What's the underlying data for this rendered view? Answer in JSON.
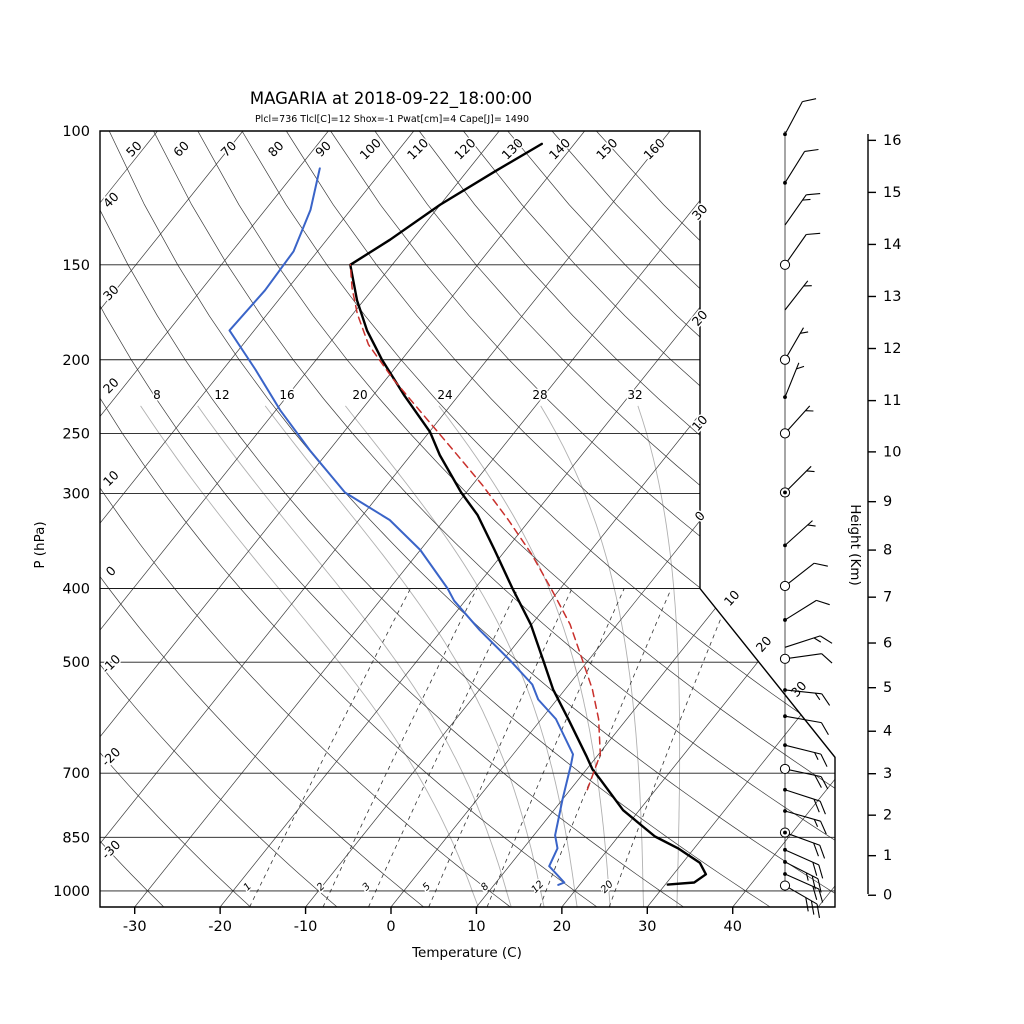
{
  "chart_data": {
    "type": "line",
    "subtype": "skew-t-log-p-sounding",
    "title": "MAGARIA at 2018-09-22_18:00:00",
    "subtitle": "Plcl=736 Tlcl[C]=12 Shox=-1 Pwat[cm]=4 Cape[J]= 1490",
    "axes": {
      "pressure": {
        "label": "P (hPa)",
        "unit": "hPa",
        "scale": "log",
        "min": 100,
        "max": 1050,
        "ticks": [
          100,
          150,
          200,
          250,
          300,
          400,
          500,
          700,
          850,
          1000
        ]
      },
      "temperature": {
        "label": "Temperature (C)",
        "unit": "C",
        "ticks": [
          -30,
          -20,
          -10,
          0,
          10,
          20,
          30,
          40
        ]
      },
      "height": {
        "label": "Height (Km)",
        "unit": "km",
        "ticks": [
          0,
          1,
          2,
          3,
          4,
          5,
          6,
          7,
          8,
          9,
          10,
          11,
          12,
          13,
          14,
          15,
          16
        ]
      }
    },
    "grid": {
      "isotherms": {
        "start": -110,
        "end": 50,
        "step": 10
      },
      "dry_adiabats": {
        "start": -30,
        "end": 160,
        "step": 10,
        "top_labels": [
          "50",
          "60",
          "70",
          "80",
          "90",
          "100",
          "110",
          "120",
          "130",
          "140",
          "150",
          "160"
        ],
        "left_labels": [
          "40",
          "30",
          "20",
          "10",
          "0",
          "-10",
          "-20",
          "-30"
        ]
      },
      "isotherm_edge_labels": {
        "upper": [
          "30",
          "20",
          "10",
          "0"
        ],
        "lower": [
          "10",
          "20",
          "30"
        ]
      },
      "moist_adiabats": {
        "values": [
          8,
          12,
          16,
          20,
          24,
          28,
          32
        ]
      },
      "mixing_ratio_lines": {
        "values": [
          1,
          2,
          3,
          5,
          8,
          12,
          20
        ],
        "unit": "g/kg"
      }
    },
    "series": [
      {
        "name": "temperature",
        "color": "#000000",
        "style": "solid",
        "width": 2.4,
        "points": [
          [
            981,
            30.3
          ],
          [
            975,
            33.2
          ],
          [
            951,
            33.8
          ],
          [
            918,
            32.0
          ],
          [
            879,
            28.1
          ],
          [
            848,
            24.3
          ],
          [
            783,
            18.1
          ],
          [
            714,
            12.6
          ],
          [
            692,
            10.7
          ],
          [
            664,
            8.7
          ],
          [
            597,
            3.4
          ],
          [
            543,
            -1.4
          ],
          [
            497,
            -5.3
          ],
          [
            446,
            -10.1
          ],
          [
            400,
            -15.6
          ],
          [
            356,
            -21.3
          ],
          [
            320,
            -26.6
          ],
          [
            299,
            -30.6
          ],
          [
            267,
            -36.6
          ],
          [
            249,
            -39.9
          ],
          [
            223,
            -46.3
          ],
          [
            200,
            -52.3
          ],
          [
            183,
            -56.8
          ],
          [
            167,
            -60.8
          ],
          [
            150,
            -64.9
          ],
          [
            139,
            -62.6
          ],
          [
            125,
            -60.0
          ],
          [
            113,
            -56.7
          ],
          [
            104,
            -53.8
          ]
        ]
      },
      {
        "name": "dewpoint",
        "color": "#3a64c8",
        "style": "solid",
        "width": 2.0,
        "points": [
          [
            982,
            17.5
          ],
          [
            975,
            18.0
          ],
          [
            928,
            14.7
          ],
          [
            879,
            14.0
          ],
          [
            845,
            12.5
          ],
          [
            758,
            10.0
          ],
          [
            681,
            7.7
          ],
          [
            661,
            7.0
          ],
          [
            594,
            1.7
          ],
          [
            560,
            -2.2
          ],
          [
            535,
            -4.3
          ],
          [
            497,
            -9.2
          ],
          [
            454,
            -15.5
          ],
          [
            415,
            -21.3
          ],
          [
            400,
            -23.2
          ],
          [
            356,
            -30.0
          ],
          [
            325,
            -36.4
          ],
          [
            299,
            -44.2
          ],
          [
            263,
            -52.3
          ],
          [
            233,
            -59.5
          ],
          [
            206,
            -66.2
          ],
          [
            183,
            -72.9
          ],
          [
            162,
            -72.5
          ],
          [
            144,
            -72.8
          ],
          [
            127,
            -74.7
          ],
          [
            112,
            -77.5
          ]
        ]
      },
      {
        "name": "parcel",
        "color": "#c9302c",
        "style": "dashed",
        "width": 1.5,
        "points": [
          [
            736,
            12.0
          ],
          [
            661,
            10.2
          ],
          [
            594,
            6.7
          ],
          [
            543,
            3.2
          ],
          [
            497,
            -0.7
          ],
          [
            446,
            -5.5
          ],
          [
            403,
            -10.7
          ],
          [
            361,
            -16.5
          ],
          [
            325,
            -22.5
          ],
          [
            292,
            -28.9
          ],
          [
            263,
            -35.5
          ],
          [
            236,
            -42.4
          ],
          [
            212,
            -49.2
          ],
          [
            191,
            -55.3
          ],
          [
            174,
            -59.5
          ],
          [
            161,
            -62.5
          ],
          [
            150,
            -64.9
          ]
        ]
      }
    ],
    "wind_barbs": [
      {
        "p": 101,
        "dir": 62,
        "full": 1,
        "half": 0,
        "base": "dot"
      },
      {
        "p": 117,
        "dir": 58,
        "full": 1,
        "half": 0,
        "base": "dot"
      },
      {
        "p": 133,
        "dir": 55,
        "full": 1,
        "half": 1,
        "base": "none"
      },
      {
        "p": 150,
        "dir": 55,
        "full": 1,
        "half": 0,
        "base": "circle"
      },
      {
        "p": 172,
        "dir": 52,
        "full": 0,
        "half": 1,
        "base": "none"
      },
      {
        "p": 200,
        "dir": 60,
        "full": 0,
        "half": 1,
        "base": "circle"
      },
      {
        "p": 224,
        "dir": 68,
        "full": 0,
        "half": 1,
        "base": "dot"
      },
      {
        "p": 250,
        "dir": 48,
        "full": 0,
        "half": 1,
        "base": "circle"
      },
      {
        "p": 299,
        "dir": 45,
        "full": 0,
        "half": 1,
        "base": "circle-dot"
      },
      {
        "p": 351,
        "dir": 42,
        "full": 0,
        "half": 1,
        "base": "dot"
      },
      {
        "p": 397,
        "dir": 38,
        "full": 1,
        "half": 0,
        "base": "circle"
      },
      {
        "p": 440,
        "dir": 32,
        "full": 1,
        "half": 0,
        "base": "dot"
      },
      {
        "p": 478,
        "dir": 18,
        "full": 1,
        "half": 1,
        "base": "none"
      },
      {
        "p": 495,
        "dir": 8,
        "full": 1,
        "half": 0,
        "base": "circle"
      },
      {
        "p": 544,
        "dir": -6,
        "full": 1,
        "half": 1,
        "base": "dot"
      },
      {
        "p": 589,
        "dir": -10,
        "full": 1,
        "half": 0,
        "base": "dot"
      },
      {
        "p": 643,
        "dir": -14,
        "full": 1,
        "half": 1,
        "base": "dot"
      },
      {
        "p": 691,
        "dir": -12,
        "full": 2,
        "half": 0,
        "base": "circle"
      },
      {
        "p": 736,
        "dir": -18,
        "full": 2,
        "half": 0,
        "base": "dot"
      },
      {
        "p": 785,
        "dir": -16,
        "full": 1,
        "half": 1,
        "base": "dot"
      },
      {
        "p": 838,
        "dir": -20,
        "full": 2,
        "half": 0,
        "base": "circle-dot"
      },
      {
        "p": 883,
        "dir": -24,
        "full": 2,
        "half": 0,
        "base": "dot"
      },
      {
        "p": 916,
        "dir": -27,
        "full": 2,
        "half": 1,
        "base": "dot"
      },
      {
        "p": 950,
        "dir": -24,
        "full": 2,
        "half": 0,
        "base": "dot"
      },
      {
        "p": 984,
        "dir": -30,
        "full": 3,
        "half": 0,
        "base": "circle"
      }
    ]
  },
  "colors": {
    "temperature": "#000000",
    "dewpoint": "#3a64c8",
    "parcel": "#c9302c",
    "subtitle": "#bf4025",
    "moist_adiabat": "#b0b0b0",
    "grid": "#3c3c3c"
  }
}
